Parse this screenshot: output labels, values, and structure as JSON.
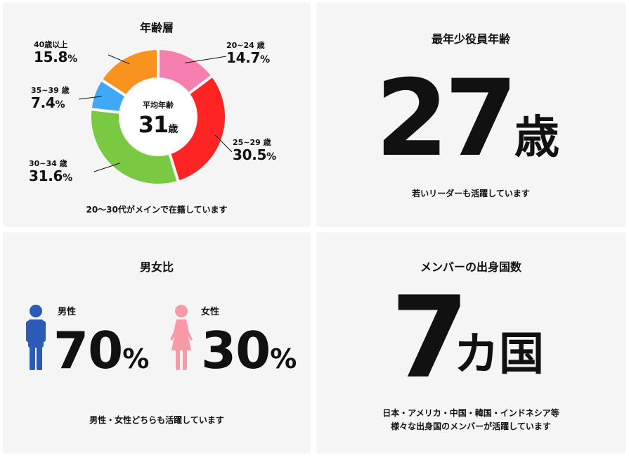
{
  "age": {
    "title": "年齢層",
    "center_label": "平均年齢",
    "center_value": "31",
    "center_unit": "歳",
    "caption": "20〜30代がメインで在籍しています"
  },
  "chart_data": {
    "type": "pie",
    "categories": [
      "20~24 歳",
      "25~29 歳",
      "30~34 歳",
      "35~39 歳",
      "40歳以上"
    ],
    "values": [
      14.7,
      30.5,
      31.6,
      7.4,
      15.8
    ],
    "value_labels": [
      "14.7",
      "30.5",
      "31.6",
      "7.4",
      "15.8"
    ],
    "percent_sign": "%",
    "colors": [
      "#f77fb0",
      "#ff2424",
      "#7ac943",
      "#3fa9f5",
      "#f7931e"
    ],
    "title": "年齢層"
  },
  "youngest": {
    "title": "最年少役員年齢",
    "value": "27",
    "unit": "歳",
    "caption": "若いリーダーも活躍しています"
  },
  "gender": {
    "title": "男女比",
    "male_label": "男性",
    "male_value": "70",
    "female_label": "女性",
    "female_value": "30",
    "percent_sign": "%",
    "male_color": "#2b5bb5",
    "female_color": "#f79aa8",
    "caption": "男性・女性どちらも活躍しています"
  },
  "nations": {
    "title": "メンバーの出身国数",
    "value": "7",
    "unit": "カ国",
    "caption_line1": "日本・アメリカ・中国・韓国・インドネシア等",
    "caption_line2": "様々な出身国のメンバーが活躍しています"
  }
}
